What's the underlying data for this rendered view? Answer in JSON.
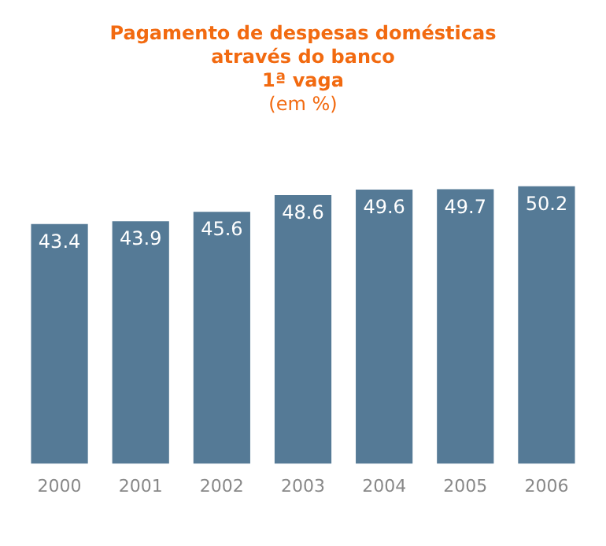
{
  "chart_data": {
    "type": "bar",
    "title": "Pagamento de despesas domésticas\natravés do banco\n1ª vaga",
    "subtitle": "(em %)",
    "categories": [
      "2000",
      "2001",
      "2002",
      "2003",
      "2004",
      "2005",
      "2006"
    ],
    "values": [
      43.4,
      43.9,
      45.6,
      48.6,
      49.6,
      49.7,
      50.2
    ],
    "color": "#557a96",
    "data_labels": true,
    "grid": false,
    "legend": false
  }
}
